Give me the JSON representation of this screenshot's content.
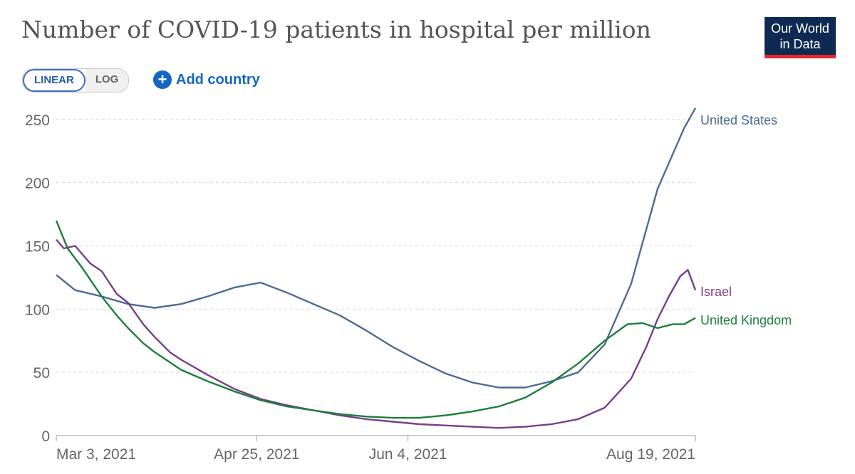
{
  "header": {
    "title": "Number of COVID-19 patients in hospital per million",
    "logo_line1": "Our World",
    "logo_line2": "in Data"
  },
  "controls": {
    "linear_label": "LINEAR",
    "log_label": "LOG",
    "add_country_label": "Add country"
  },
  "chart_data": {
    "type": "line",
    "title": "Number of COVID-19 patients in hospital per million",
    "xlabel": "",
    "ylabel": "",
    "x_ticks": [
      "Mar 3, 2021",
      "Apr 25, 2021",
      "Jun 4, 2021",
      "Aug 19, 2021"
    ],
    "y_ticks": [
      0,
      50,
      100,
      150,
      200,
      250
    ],
    "xlim": [
      "2021-03-03",
      "2021-08-19"
    ],
    "ylim": [
      0,
      260
    ],
    "grid": true,
    "legend": "right-labels",
    "series": [
      {
        "name": "United States",
        "color": "#4e6a96",
        "points": [
          [
            "2021-03-03",
            127
          ],
          [
            "2021-03-08",
            115
          ],
          [
            "2021-03-15",
            110
          ],
          [
            "2021-03-22",
            104
          ],
          [
            "2021-03-29",
            101
          ],
          [
            "2021-04-05",
            104
          ],
          [
            "2021-04-12",
            110
          ],
          [
            "2021-04-19",
            117
          ],
          [
            "2021-04-26",
            121
          ],
          [
            "2021-05-03",
            113
          ],
          [
            "2021-05-10",
            104
          ],
          [
            "2021-05-17",
            95
          ],
          [
            "2021-05-24",
            83
          ],
          [
            "2021-05-31",
            70
          ],
          [
            "2021-06-07",
            59
          ],
          [
            "2021-06-14",
            49
          ],
          [
            "2021-06-21",
            42
          ],
          [
            "2021-06-28",
            38
          ],
          [
            "2021-07-05",
            38
          ],
          [
            "2021-07-12",
            43
          ],
          [
            "2021-07-19",
            50
          ],
          [
            "2021-07-26",
            72
          ],
          [
            "2021-08-02",
            120
          ],
          [
            "2021-08-09",
            195
          ],
          [
            "2021-08-16",
            243
          ],
          [
            "2021-08-19",
            259
          ]
        ]
      },
      {
        "name": "Israel",
        "color": "#7a3d8c",
        "points": [
          [
            "2021-03-03",
            155
          ],
          [
            "2021-03-05",
            148
          ],
          [
            "2021-03-08",
            150
          ],
          [
            "2021-03-12",
            136
          ],
          [
            "2021-03-15",
            130
          ],
          [
            "2021-03-19",
            112
          ],
          [
            "2021-03-22",
            105
          ],
          [
            "2021-03-26",
            88
          ],
          [
            "2021-03-29",
            78
          ],
          [
            "2021-04-02",
            66
          ],
          [
            "2021-04-05",
            60
          ],
          [
            "2021-04-12",
            48
          ],
          [
            "2021-04-19",
            37
          ],
          [
            "2021-04-26",
            29
          ],
          [
            "2021-05-03",
            24
          ],
          [
            "2021-05-10",
            20
          ],
          [
            "2021-05-17",
            16
          ],
          [
            "2021-05-24",
            13
          ],
          [
            "2021-05-31",
            11
          ],
          [
            "2021-06-07",
            9
          ],
          [
            "2021-06-14",
            8
          ],
          [
            "2021-06-21",
            7
          ],
          [
            "2021-06-28",
            6
          ],
          [
            "2021-07-05",
            7
          ],
          [
            "2021-07-12",
            9
          ],
          [
            "2021-07-19",
            13
          ],
          [
            "2021-07-26",
            22
          ],
          [
            "2021-08-02",
            45
          ],
          [
            "2021-08-06",
            70
          ],
          [
            "2021-08-09",
            92
          ],
          [
            "2021-08-12",
            110
          ],
          [
            "2021-08-15",
            126
          ],
          [
            "2021-08-17",
            131
          ],
          [
            "2021-08-19",
            115
          ]
        ]
      },
      {
        "name": "United Kingdom",
        "color": "#1d7f3c",
        "points": [
          [
            "2021-03-03",
            170
          ],
          [
            "2021-03-06",
            148
          ],
          [
            "2021-03-10",
            132
          ],
          [
            "2021-03-15",
            110
          ],
          [
            "2021-03-19",
            95
          ],
          [
            "2021-03-22",
            85
          ],
          [
            "2021-03-26",
            73
          ],
          [
            "2021-03-29",
            66
          ],
          [
            "2021-04-05",
            52
          ],
          [
            "2021-04-12",
            43
          ],
          [
            "2021-04-19",
            35
          ],
          [
            "2021-04-26",
            28
          ],
          [
            "2021-05-03",
            23
          ],
          [
            "2021-05-10",
            20
          ],
          [
            "2021-05-17",
            17
          ],
          [
            "2021-05-24",
            15
          ],
          [
            "2021-05-31",
            14
          ],
          [
            "2021-06-07",
            14
          ],
          [
            "2021-06-14",
            16
          ],
          [
            "2021-06-21",
            19
          ],
          [
            "2021-06-28",
            23
          ],
          [
            "2021-07-05",
            30
          ],
          [
            "2021-07-12",
            42
          ],
          [
            "2021-07-19",
            57
          ],
          [
            "2021-07-26",
            75
          ],
          [
            "2021-08-01",
            88
          ],
          [
            "2021-08-05",
            89
          ],
          [
            "2021-08-09",
            85
          ],
          [
            "2021-08-13",
            88
          ],
          [
            "2021-08-16",
            88
          ],
          [
            "2021-08-19",
            93
          ]
        ]
      }
    ]
  }
}
